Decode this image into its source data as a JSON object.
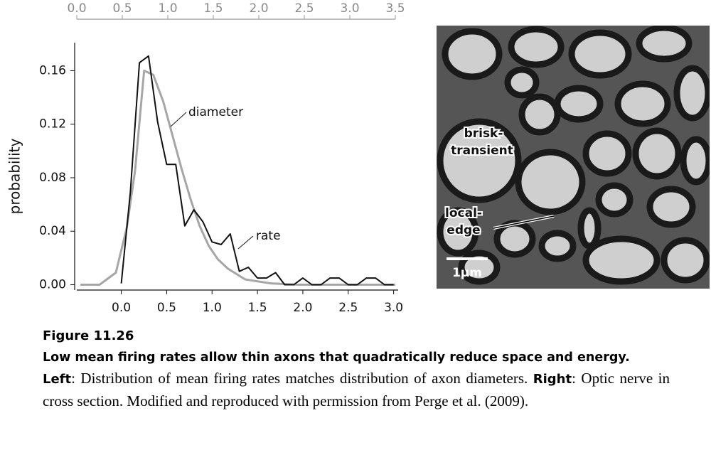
{
  "chart_data": {
    "type": "line",
    "ylabel": "probability",
    "xlim": [
      -0.49,
      3.05
    ],
    "xticks": [
      {
        "value": 0,
        "label": "0.0"
      },
      0.5,
      {
        "value": 1,
        "label": "1.0"
      },
      1.5,
      {
        "value": 2,
        "label": "2.0"
      },
      2.5,
      {
        "value": 3,
        "label": "3.0"
      }
    ],
    "x2lim": [
      0,
      3.5
    ],
    "x2ticks": [
      {
        "value": 0,
        "label": "0.0"
      },
      0.5,
      {
        "value": 1,
        "label": "1.0"
      },
      1.5,
      {
        "value": 2,
        "label": "2.0"
      },
      2.5,
      {
        "value": 3,
        "label": "3.0"
      },
      3.5
    ],
    "ylim": [
      -0.004,
      0.181
    ],
    "yticks": [
      {
        "value": 0,
        "label": "0.00"
      },
      0.04,
      0.08,
      0.12,
      0.16
    ],
    "series": [
      {
        "name": "rate",
        "color": "#111111",
        "x": [
          0.0,
          0.1,
          0.2,
          0.3,
          0.4,
          0.5,
          0.6,
          0.7,
          0.8,
          0.9,
          1.0,
          1.1,
          1.2,
          1.3,
          1.4,
          1.5,
          1.6,
          1.7,
          1.8,
          1.9,
          2.0,
          2.1,
          2.2,
          2.3,
          2.4,
          2.5,
          2.6,
          2.7,
          2.8,
          2.9,
          3.0
        ],
        "values": [
          0.001,
          0.069,
          0.166,
          0.171,
          0.122,
          0.09,
          0.09,
          0.044,
          0.056,
          0.047,
          0.032,
          0.03,
          0.038,
          0.01,
          0.013,
          0.005,
          0.005,
          0.009,
          0,
          0,
          0.005,
          0,
          0,
          0.005,
          0.005,
          0,
          0,
          0.005,
          0.005,
          0,
          0
        ]
      },
      {
        "name": "diameter",
        "color": "#a6a6a6",
        "axis": "x2",
        "x": [
          0.04,
          0.25,
          0.43,
          0.55,
          0.64,
          0.74,
          0.84,
          0.95,
          1.05,
          1.15,
          1.25,
          1.35,
          1.45,
          1.55,
          1.66,
          1.85,
          2.13,
          2.44,
          3.5
        ],
        "values": [
          0,
          0,
          0.009,
          0.043,
          0.085,
          0.16,
          0.157,
          0.137,
          0.112,
          0.087,
          0.064,
          0.044,
          0.029,
          0.019,
          0.012,
          0.004,
          0.001,
          0,
          0
        ]
      }
    ]
  },
  "micrograph": {
    "labels": [
      "brisk-",
      "transient",
      "local-",
      "edge"
    ],
    "scale_bar": "1μm"
  },
  "caption": {
    "figure": "Figure 11.26",
    "title": "Low mean firing rates allow thin axons that quadratically reduce space and energy.",
    "left_label": "Left",
    "left_text": ": Distribution of mean firing rates matches distribution of axon diameters. ",
    "right_label": "Right",
    "right_text": ": Optic nerve in cross section. Modified and reproduced with permission from Perge et al. (2009)."
  }
}
